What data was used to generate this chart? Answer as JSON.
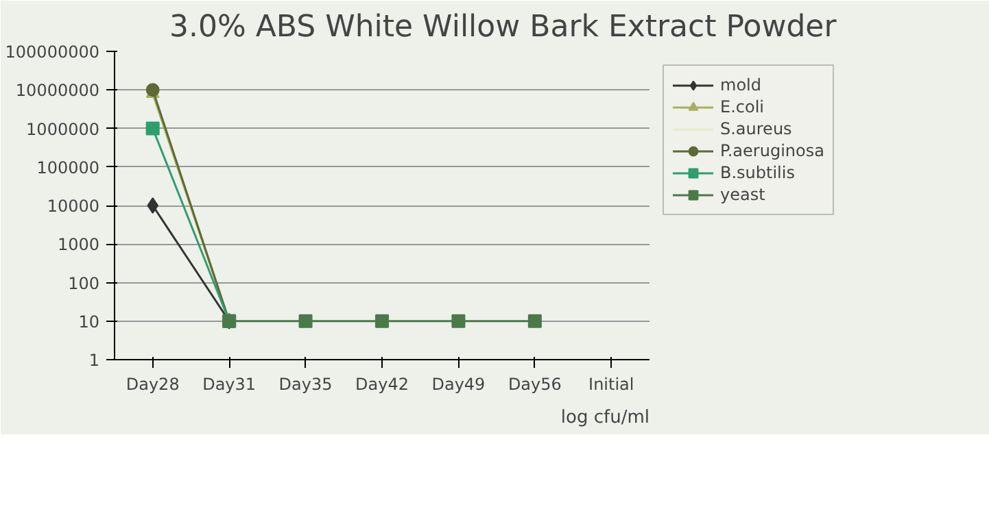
{
  "chart_data": {
    "type": "line",
    "title": "3.0% ABS White Willow Bark Extract Powder",
    "categories": [
      "Day28",
      "Day31",
      "Day35",
      "Day42",
      "Day49",
      "Day56",
      "Initial"
    ],
    "series": [
      {
        "name": "mold",
        "color": "#333333",
        "marker": "diamond",
        "values": [
          10000,
          10,
          null,
          null,
          null,
          null,
          null
        ]
      },
      {
        "name": "E.coli",
        "color": "#a8b060",
        "marker": "triangle",
        "values": [
          8000000,
          10,
          null,
          null,
          null,
          null,
          null
        ]
      },
      {
        "name": "S.aureus",
        "color": "#e8ecc4",
        "marker": "none",
        "values": [
          null,
          null,
          null,
          null,
          null,
          null,
          null
        ]
      },
      {
        "name": "P.aeruginosa",
        "color": "#5d6a35",
        "marker": "circle",
        "values": [
          10000000,
          10,
          null,
          null,
          null,
          null,
          null
        ]
      },
      {
        "name": "B.subtilis",
        "color": "#2e9e6e",
        "marker": "square",
        "values": [
          1000000,
          10,
          null,
          null,
          null,
          null,
          null
        ]
      },
      {
        "name": "yeast",
        "color": "#4a7a4a",
        "marker": "square",
        "values": [
          null,
          10,
          10,
          10,
          10,
          10,
          null
        ]
      }
    ],
    "log": "y",
    "ylim": [
      1,
      100000000
    ],
    "yticks": [
      1,
      10,
      100,
      1000,
      10000,
      100000,
      1000000,
      10000000,
      100000000
    ],
    "grid": "y",
    "legend": "right",
    "annotations": [
      "log cfu/ml"
    ]
  }
}
